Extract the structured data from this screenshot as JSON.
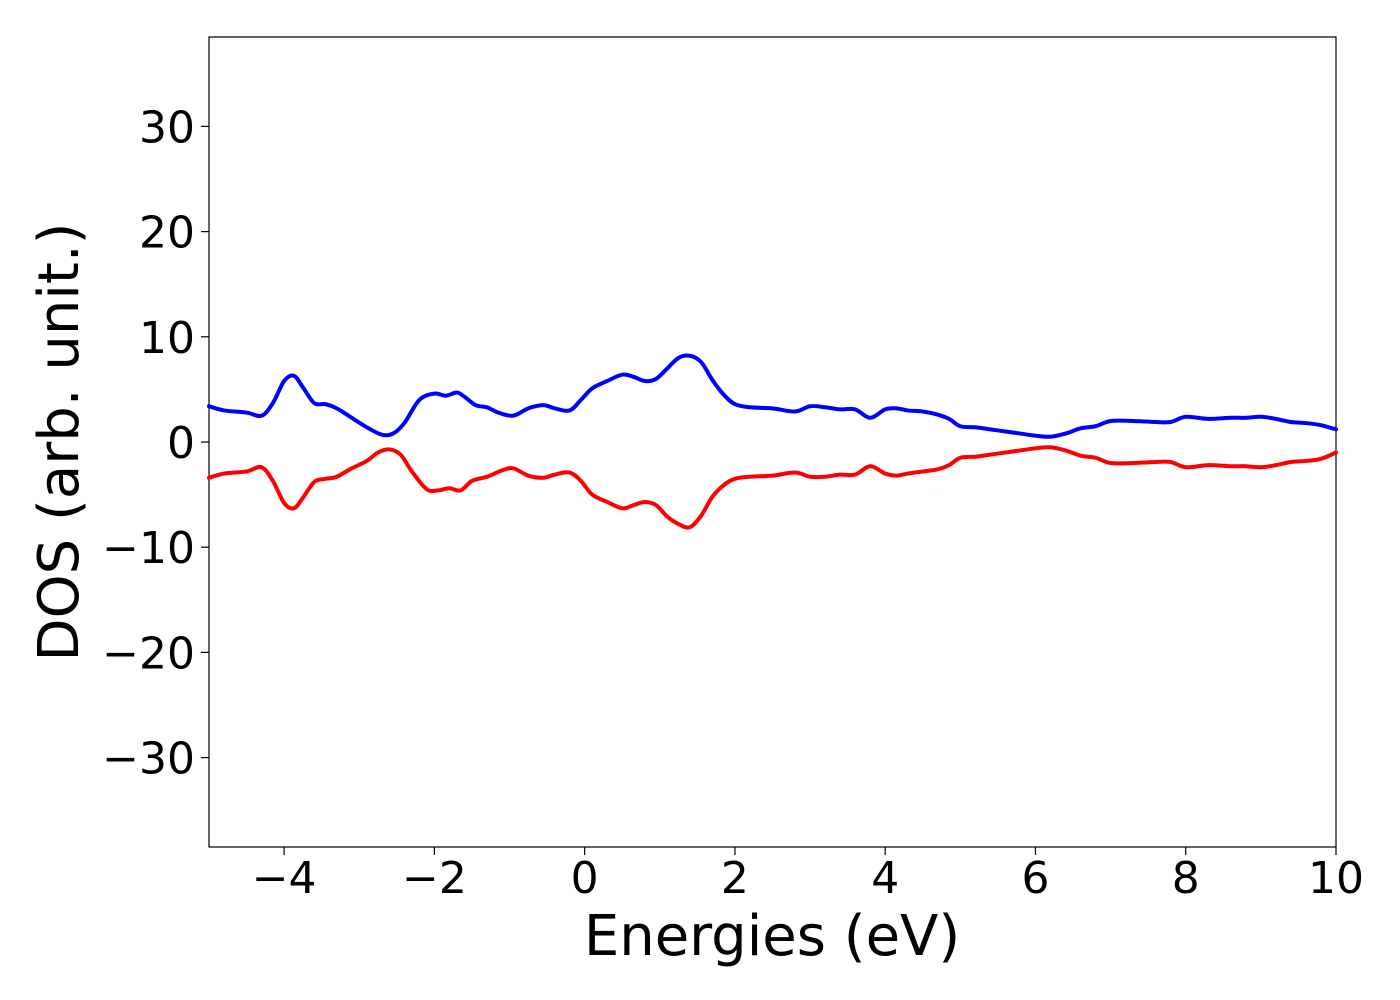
{
  "chart_data": {
    "type": "line",
    "title": "",
    "xlabel": "Energies (eV)",
    "ylabel": "DOS (arb. unit.)",
    "xlim": [
      -5,
      10
    ],
    "ylim": [
      -38.5,
      38.5
    ],
    "xticks": [
      -4,
      -2,
      0,
      2,
      4,
      6,
      8,
      10
    ],
    "xtick_labels": [
      "−4",
      "−2",
      "0",
      "2",
      "4",
      "6",
      "8",
      "10"
    ],
    "yticks": [
      30,
      20,
      10,
      0,
      -10,
      -20,
      -30
    ],
    "ytick_labels": [
      "30",
      "20",
      "10",
      "0",
      "−10",
      "−20",
      "−30"
    ],
    "grid": false,
    "legend": "none",
    "series": [
      {
        "color": "#0000ff",
        "x": [
          -5,
          -4.8,
          -4.5,
          -4.3,
          -4.15,
          -4.0,
          -3.87,
          -3.75,
          -3.6,
          -3.45,
          -3.3,
          -3.1,
          -2.9,
          -2.7,
          -2.55,
          -2.4,
          -2.2,
          -2.0,
          -1.85,
          -1.7,
          -1.6,
          -1.45,
          -1.3,
          -1.15,
          -0.95,
          -0.75,
          -0.55,
          -0.4,
          -0.2,
          -0.05,
          0.1,
          0.3,
          0.5,
          0.65,
          0.8,
          0.95,
          1.1,
          1.25,
          1.4,
          1.55,
          1.7,
          1.85,
          2.0,
          2.2,
          2.5,
          2.8,
          3.0,
          3.2,
          3.4,
          3.6,
          3.8,
          4.0,
          4.15,
          4.3,
          4.5,
          4.7,
          4.85,
          5.0,
          5.2,
          5.4,
          5.6,
          5.8,
          6.0,
          6.2,
          6.4,
          6.6,
          6.8,
          7.0,
          7.3,
          7.6,
          7.8,
          8.0,
          8.3,
          8.6,
          8.8,
          9.0,
          9.2,
          9.4,
          9.6,
          9.8,
          10.0
        ],
        "y": [
          3.4,
          3.0,
          2.8,
          2.5,
          3.7,
          5.8,
          6.3,
          5.2,
          3.7,
          3.6,
          3.2,
          2.3,
          1.4,
          0.7,
          0.8,
          1.8,
          4.0,
          4.6,
          4.4,
          4.7,
          4.3,
          3.5,
          3.3,
          2.8,
          2.5,
          3.2,
          3.5,
          3.2,
          3.0,
          4.0,
          5.1,
          5.8,
          6.4,
          6.2,
          5.8,
          6.0,
          7.0,
          8.0,
          8.2,
          7.6,
          5.9,
          4.5,
          3.6,
          3.3,
          3.2,
          2.9,
          3.4,
          3.3,
          3.1,
          3.1,
          2.3,
          3.1,
          3.2,
          3.0,
          2.9,
          2.6,
          2.2,
          1.5,
          1.4,
          1.2,
          1.0,
          0.8,
          0.6,
          0.5,
          0.8,
          1.3,
          1.5,
          2.0,
          2.0,
          1.9,
          1.9,
          2.4,
          2.2,
          2.3,
          2.3,
          2.4,
          2.2,
          1.9,
          1.8,
          1.6,
          1.2
        ]
      },
      {
        "color": "#ff0000",
        "x": [
          -5,
          -4.8,
          -4.5,
          -4.3,
          -4.15,
          -4.0,
          -3.87,
          -3.75,
          -3.6,
          -3.45,
          -3.3,
          -3.1,
          -2.9,
          -2.75,
          -2.6,
          -2.45,
          -2.3,
          -2.1,
          -1.95,
          -1.8,
          -1.65,
          -1.5,
          -1.3,
          -1.1,
          -0.95,
          -0.75,
          -0.55,
          -0.4,
          -0.2,
          -0.05,
          0.1,
          0.3,
          0.5,
          0.65,
          0.8,
          0.95,
          1.1,
          1.25,
          1.4,
          1.55,
          1.7,
          1.85,
          2.0,
          2.2,
          2.5,
          2.8,
          3.0,
          3.2,
          3.4,
          3.6,
          3.8,
          4.0,
          4.15,
          4.3,
          4.5,
          4.7,
          4.85,
          5.0,
          5.2,
          5.4,
          5.6,
          5.8,
          6.0,
          6.2,
          6.4,
          6.6,
          6.8,
          7.0,
          7.3,
          7.6,
          7.8,
          8.0,
          8.3,
          8.6,
          8.8,
          9.0,
          9.2,
          9.4,
          9.6,
          9.8,
          10.0
        ],
        "y": [
          -3.4,
          -3.0,
          -2.8,
          -2.4,
          -3.7,
          -5.8,
          -6.3,
          -5.3,
          -3.8,
          -3.5,
          -3.3,
          -2.5,
          -1.8,
          -1.0,
          -0.7,
          -1.2,
          -2.8,
          -4.5,
          -4.6,
          -4.4,
          -4.6,
          -3.7,
          -3.3,
          -2.7,
          -2.5,
          -3.2,
          -3.4,
          -3.1,
          -2.9,
          -3.7,
          -5.0,
          -5.7,
          -6.3,
          -6.0,
          -5.7,
          -6.0,
          -7.1,
          -7.8,
          -8.1,
          -7.0,
          -5.2,
          -4.1,
          -3.5,
          -3.3,
          -3.2,
          -2.9,
          -3.3,
          -3.3,
          -3.1,
          -3.1,
          -2.3,
          -3.0,
          -3.2,
          -3.0,
          -2.8,
          -2.6,
          -2.2,
          -1.5,
          -1.4,
          -1.2,
          -1.0,
          -0.8,
          -0.6,
          -0.5,
          -0.8,
          -1.3,
          -1.5,
          -2.0,
          -2.0,
          -1.9,
          -1.9,
          -2.4,
          -2.2,
          -2.3,
          -2.3,
          -2.4,
          -2.2,
          -1.9,
          -1.8,
          -1.6,
          -1.0
        ]
      }
    ]
  }
}
